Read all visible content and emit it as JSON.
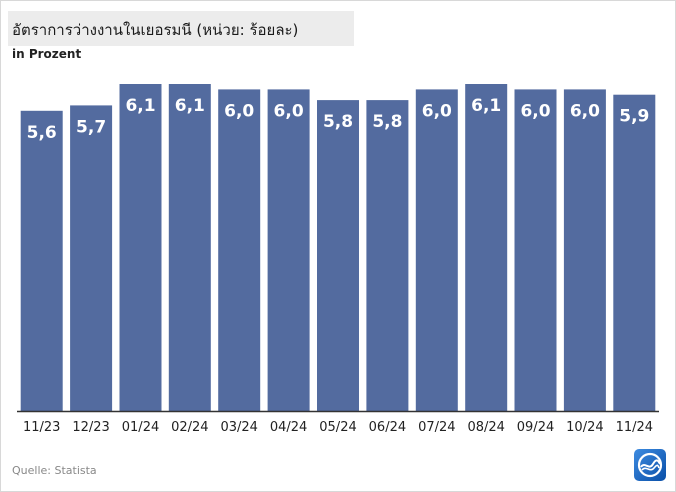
{
  "header": {
    "title": "อัตราการว่างงานในเยอรมนี (หน่วย: ร้อยละ)",
    "subtitle": "in Prozent"
  },
  "footer": {
    "source": "Quelle: Statista"
  },
  "colors": {
    "bar": "#536b9f",
    "label": "#ffffff",
    "axis": "#333333",
    "tick_text": "#222222"
  },
  "logo": {
    "icon": "broadcaster-logo-icon"
  },
  "chart_data": {
    "type": "bar",
    "title": "อัตราการว่างงานในเยอรมนี (หน่วย: ร้อยละ)",
    "ylabel": "in Prozent",
    "categories": [
      "11/23",
      "12/23",
      "01/24",
      "02/24",
      "03/24",
      "04/24",
      "05/24",
      "06/24",
      "07/24",
      "08/24",
      "09/24",
      "10/24",
      "11/24"
    ],
    "values": [
      5.6,
      5.7,
      6.1,
      6.1,
      6.0,
      6.0,
      5.8,
      5.8,
      6.0,
      6.1,
      6.0,
      6.0,
      5.9
    ],
    "data_labels": [
      "5,6",
      "5,7",
      "6,1",
      "6,1",
      "6,0",
      "6,0",
      "5,8",
      "5,8",
      "6,0",
      "6,1",
      "6,0",
      "6,0",
      "5,9"
    ],
    "ylim": [
      0,
      6.1
    ],
    "grid": false,
    "legend": "none"
  }
}
